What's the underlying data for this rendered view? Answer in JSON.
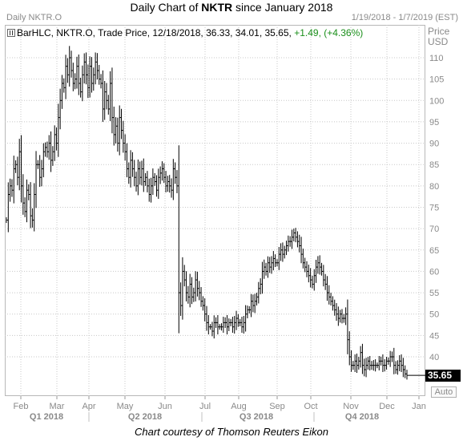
{
  "title_prefix": "Daily Chart of ",
  "title_ticker": "NKTR",
  "title_suffix": " since January 2018",
  "pane_label": "Daily NKTR.O",
  "date_range": "1/19/2018 - 1/7/2019 (EST)",
  "legend": {
    "text": "BarHLC, NKTR.O, Trade Price,  12/18/2018, 36.33, 34.01, 35.65, ",
    "change": "+1.49,  (+4.36%)"
  },
  "axis_title_line1": "Price",
  "axis_title_line2": "USD",
  "last_price": "35.65",
  "auto_button": "Auto",
  "credit": "Chart courtesy of Thomson Reuters Eikon",
  "colors": {
    "bars": "#000000",
    "grid": "#c8c8c8",
    "axis_text": "#8a8a8a",
    "change": "#1a8f1a"
  },
  "chart_data": {
    "type": "bar",
    "subtype": "HLC",
    "ylim": [
      32,
      117
    ],
    "y_ticks": [
      40,
      45,
      50,
      55,
      60,
      65,
      70,
      75,
      80,
      85,
      90,
      95,
      100,
      105,
      110
    ],
    "x_ticks": [
      "Feb",
      "Mar",
      "Apr",
      "May",
      "Jun",
      "Jul",
      "Aug",
      "Sep",
      "Oct",
      "Nov",
      "Dec",
      "Jan"
    ],
    "quarters": [
      "Q1 2018",
      "Q2 2018",
      "Q3 2018",
      "Q4 2018"
    ],
    "grid": true,
    "last_close": 35.65,
    "closes": [
      72,
      78,
      80,
      79,
      84,
      85,
      82,
      88,
      80,
      76,
      74,
      79,
      78,
      73,
      72,
      78,
      85,
      85,
      82,
      84,
      88,
      89,
      88,
      90,
      86,
      88,
      92,
      90,
      96,
      100,
      104,
      103,
      108,
      106,
      110,
      107,
      104,
      105,
      108,
      104,
      102,
      106,
      109,
      106,
      103,
      108,
      104,
      106,
      109,
      107,
      105,
      104,
      98,
      102,
      100,
      98,
      104,
      96,
      92,
      94,
      90,
      96,
      93,
      90,
      88,
      84,
      82,
      86,
      84,
      82,
      80,
      84,
      82,
      84,
      81,
      82,
      80,
      78,
      80,
      82,
      81,
      79,
      82,
      83,
      84,
      82,
      80,
      81,
      80,
      79,
      84,
      82,
      80,
      55,
      52,
      60,
      58,
      55,
      54,
      57,
      54,
      55,
      58,
      56,
      55,
      53,
      52,
      50,
      48,
      47,
      47,
      46,
      48,
      48,
      47,
      47,
      47,
      48,
      48,
      47,
      48,
      48,
      47,
      48,
      49,
      48,
      48,
      47,
      48,
      50,
      51,
      51,
      53,
      52,
      53,
      54,
      56,
      57,
      60,
      61,
      60,
      62,
      61,
      62,
      63,
      62,
      62,
      64,
      65,
      64,
      65,
      66,
      67,
      67,
      68,
      69,
      68,
      67,
      66,
      64,
      62,
      61,
      60,
      59,
      58,
      57,
      59,
      61,
      62,
      61,
      60,
      58,
      57,
      55,
      54,
      53,
      52,
      51,
      50,
      49,
      50,
      49,
      49,
      50,
      44,
      40,
      38,
      38,
      39,
      38,
      39,
      41,
      38,
      37,
      38,
      39,
      38,
      38,
      38,
      38,
      38,
      39,
      39,
      38,
      38,
      39,
      39,
      40,
      40,
      38,
      37,
      38,
      39,
      38,
      37,
      36,
      35.65
    ]
  }
}
